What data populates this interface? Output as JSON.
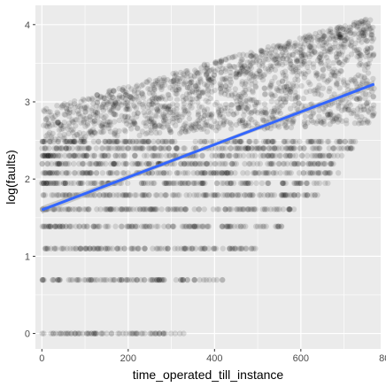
{
  "chart_data": {
    "type": "scatter",
    "title": "",
    "xlabel": "time_operated_till_instance",
    "ylabel": "log(faults)",
    "xlim": [
      -15,
      785
    ],
    "ylim": [
      -0.2,
      4.25
    ],
    "xticks": [
      "0",
      "200",
      "400",
      "600",
      "800"
    ],
    "yticks": [
      "0",
      "1",
      "2",
      "3",
      "4"
    ],
    "grid": true,
    "point_alpha": 0.12,
    "colors": {
      "panel": "#ebebeb",
      "grid_major": "#ffffff",
      "points": "#000000",
      "fit_line": "#3366ff",
      "ribbon": "#999999"
    },
    "discrete_levels": [
      {
        "y": 0.0,
        "x_max": 330
      },
      {
        "y": 0.693,
        "x_max": 420
      },
      {
        "y": 1.099,
        "x_max": 500
      },
      {
        "y": 1.386,
        "x_max": 560
      },
      {
        "y": 1.609,
        "x_max": 600
      },
      {
        "y": 1.792,
        "x_max": 640
      },
      {
        "y": 1.946,
        "x_max": 680
      },
      {
        "y": 2.079,
        "x_max": 690
      },
      {
        "y": 2.197,
        "x_max": 700
      },
      {
        "y": 2.303,
        "x_max": 710
      },
      {
        "y": 2.398,
        "x_max": 720
      },
      {
        "y": 2.485,
        "x_max": 730
      }
    ],
    "upper_cloud": {
      "x_min": 0,
      "x_max": 770,
      "y_min": 2.5,
      "y_max": 4.1
    },
    "fit": {
      "method": "lm",
      "series": [
        {
          "x": 0,
          "y": 1.6
        },
        {
          "x": 770,
          "y": 3.23
        }
      ]
    }
  }
}
